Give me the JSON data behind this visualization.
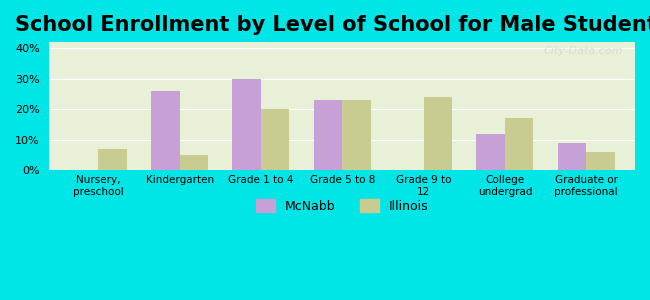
{
  "title": "School Enrollment by Level of School for Male Students",
  "categories": [
    "Nursery,\npreschool",
    "Kindergarten",
    "Grade 1 to 4",
    "Grade 5 to 8",
    "Grade 9 to\n12",
    "College\nundergrad",
    "Graduate or\nprofessional"
  ],
  "mcnabb": [
    0,
    26,
    30,
    23,
    0,
    12,
    9
  ],
  "illinois": [
    7,
    5,
    20,
    23,
    24,
    17,
    6
  ],
  "mcnabb_color": "#c8a0d8",
  "illinois_color": "#c8cc90",
  "background_color": "#00e5e5",
  "plot_bg_start": "#e8f0d8",
  "plot_bg_end": "#f8fdf0",
  "title_fontsize": 15,
  "ylim": [
    0,
    42
  ],
  "yticks": [
    0,
    10,
    20,
    30,
    40
  ],
  "legend_labels": [
    "McNabb",
    "Illinois"
  ],
  "bar_width": 0.35
}
